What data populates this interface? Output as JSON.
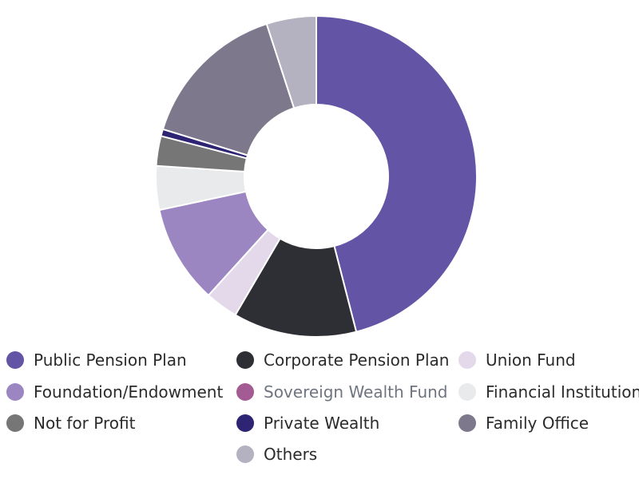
{
  "chart_data": {
    "type": "pie",
    "title": "",
    "donut": true,
    "categories": [
      "Public Pension Plan",
      "Corporate Pension Plan",
      "Union Fund",
      "Foundation/Endowment",
      "Sovereign Wealth Fund",
      "Financial Institution",
      "Not for Profit",
      "Private Wealth",
      "Family Office",
      "Others"
    ],
    "values": [
      45.9,
      12.4,
      3.3,
      9.9,
      0.0,
      4.4,
      3.0,
      0.7,
      15.2,
      5.0
    ],
    "colors": [
      "#6354a5",
      "#2e2e35",
      "#e4d9ea",
      "#9b86c2",
      "#a45a92",
      "#e9eaec",
      "#767676",
      "#2d2474",
      "#7e788d",
      "#b4b1c1"
    ],
    "legend_placement": "bottom"
  },
  "legend": {
    "items": [
      {
        "label": "Public Pension Plan",
        "color": "#6354a5",
        "muted": false
      },
      {
        "label": "Corporate Pension Plan",
        "color": "#2e2e35",
        "muted": false
      },
      {
        "label": "Union Fund",
        "color": "#e4d9ea",
        "muted": false
      },
      {
        "label": "Foundation/Endowment",
        "color": "#9b86c2",
        "muted": false
      },
      {
        "label": "Sovereign Wealth Fund",
        "color": "#a45a92",
        "muted": true
      },
      {
        "label": "Financial Institution",
        "color": "#e9eaec",
        "muted": false
      },
      {
        "label": "Not for Profit",
        "color": "#767676",
        "muted": false
      },
      {
        "label": "Private Wealth",
        "color": "#2d2474",
        "muted": false
      },
      {
        "label": "Family Office",
        "color": "#7e788d",
        "muted": false
      },
      {
        "label": "Others",
        "color": "#b4b1c1",
        "muted": false
      }
    ]
  }
}
